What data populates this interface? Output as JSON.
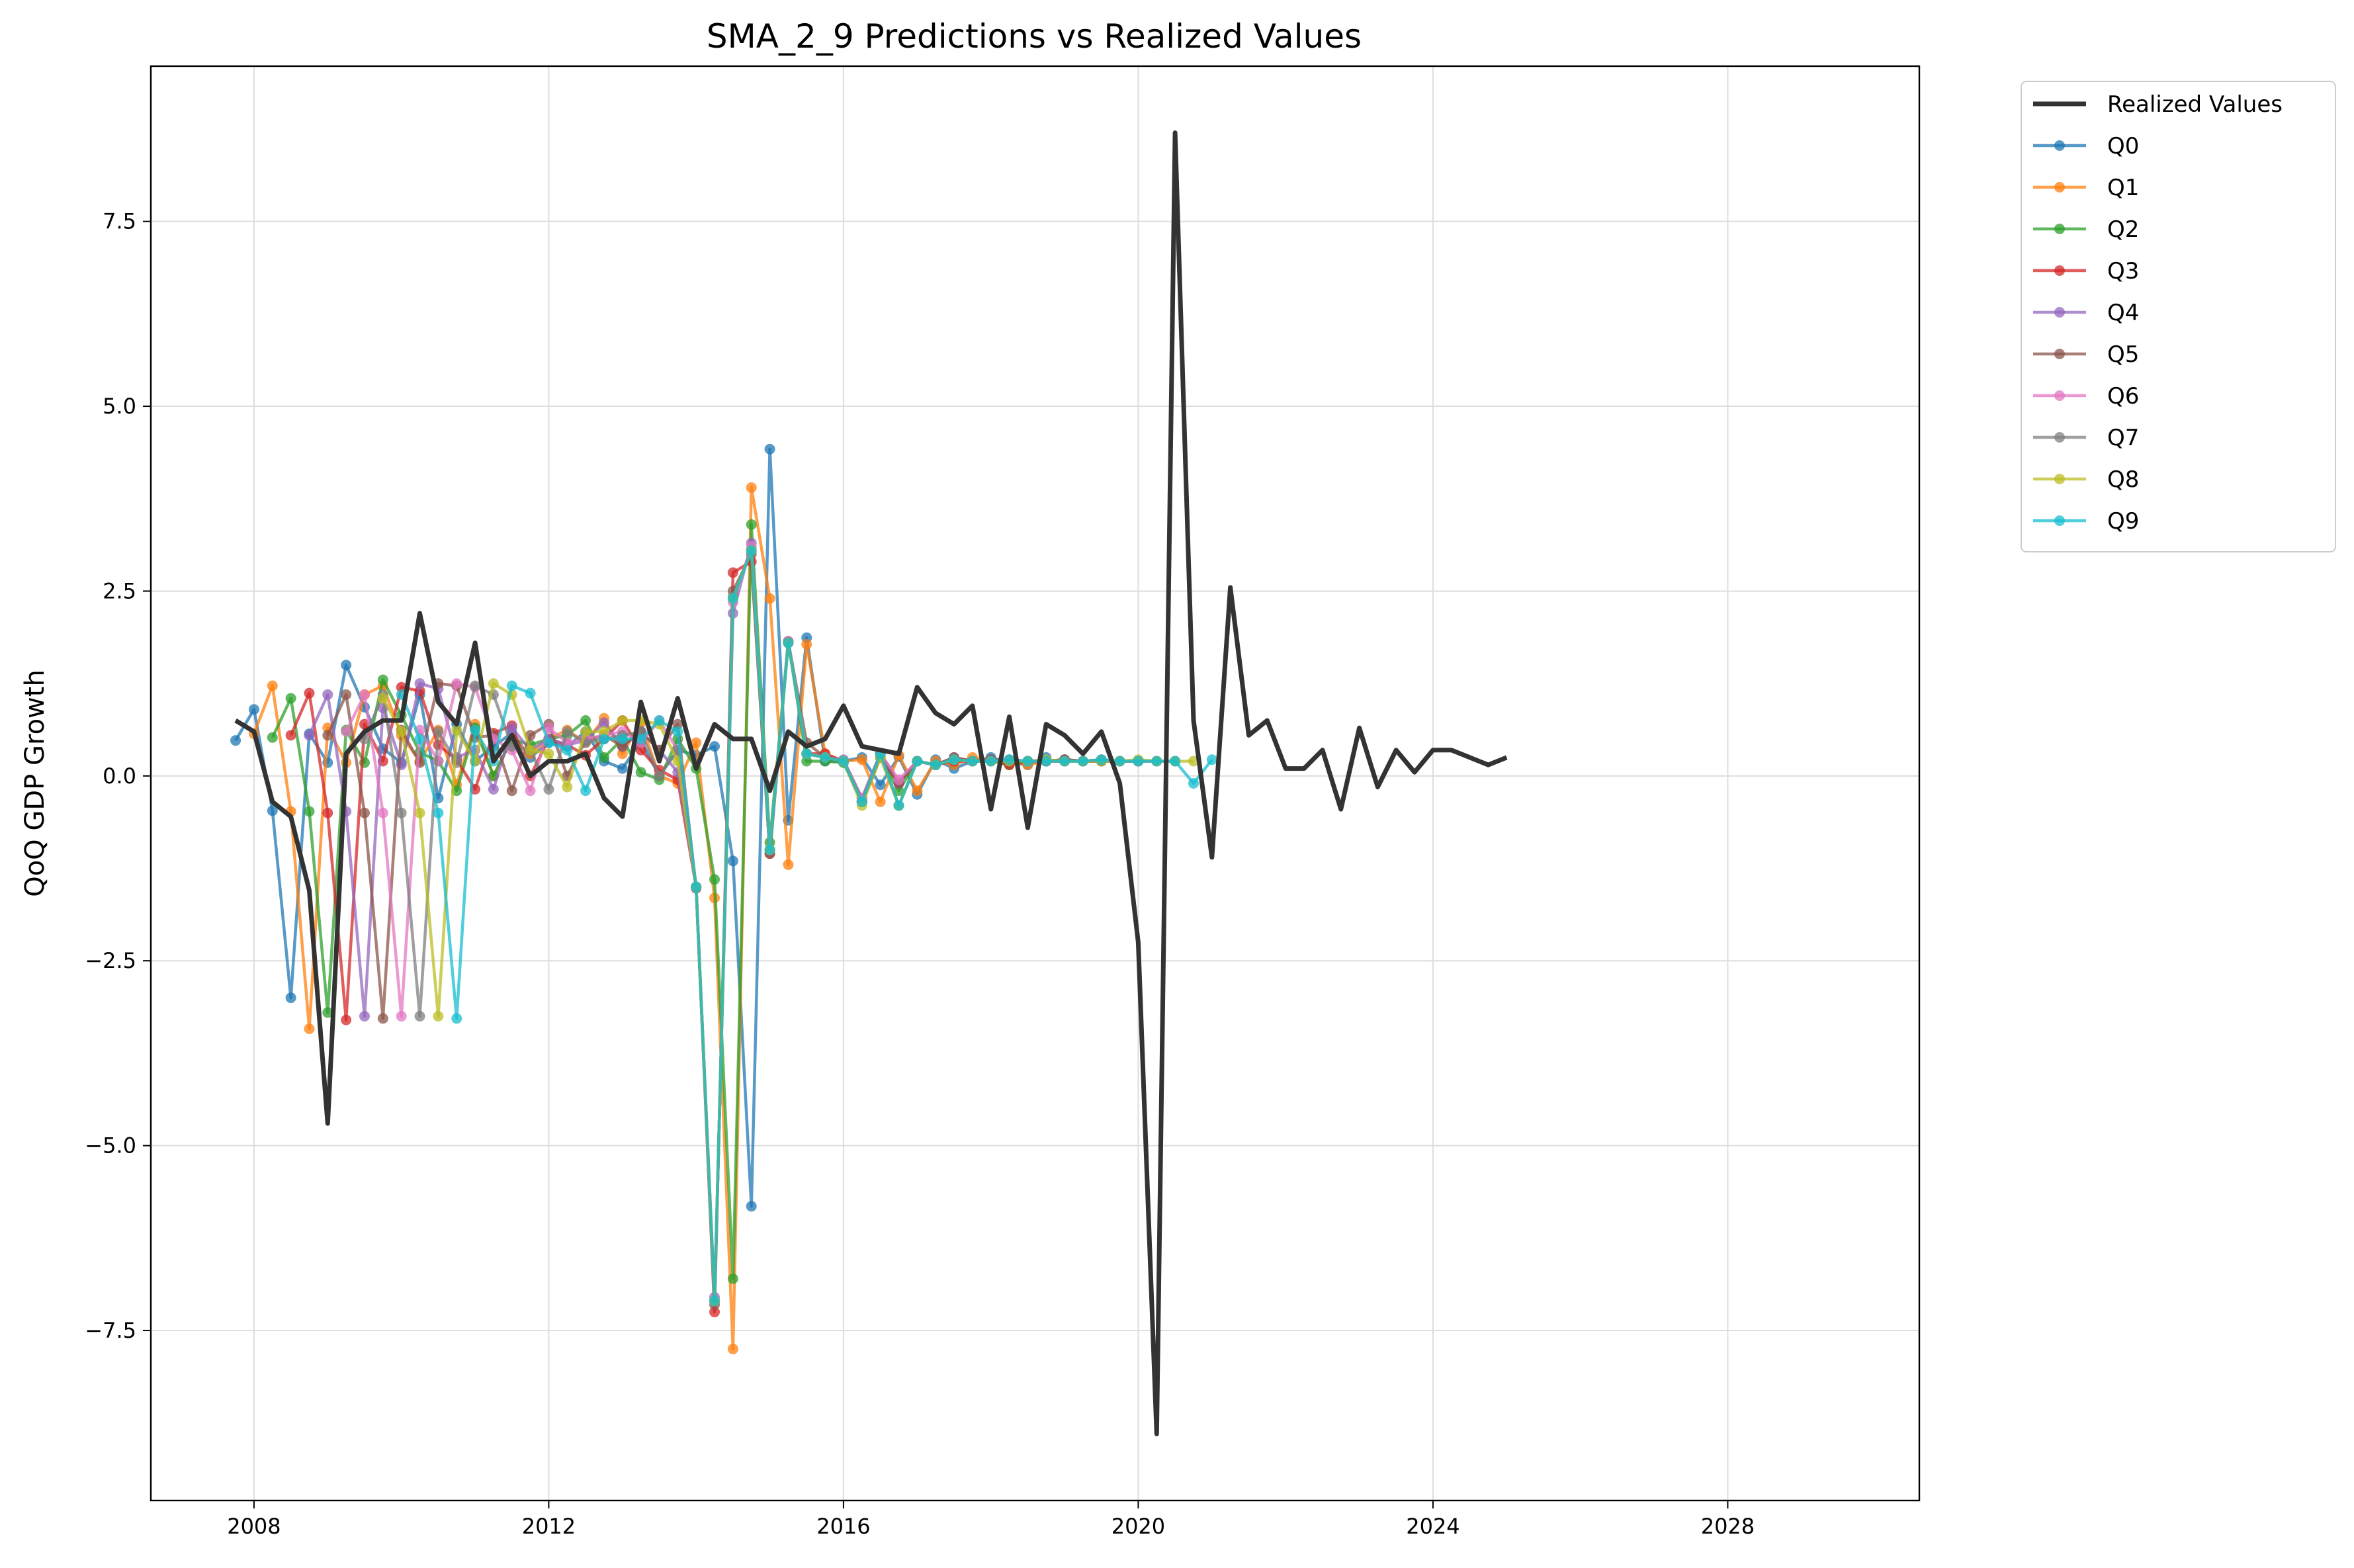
{
  "chart_data": {
    "type": "line",
    "title": "SMA_2_9 Predictions vs Realized Values",
    "xlabel": "",
    "ylabel": "QoQ GDP Growth",
    "xlim": [
      2006.6,
      2030.6
    ],
    "ylim": [
      -9.8,
      9.6
    ],
    "xticks": [
      2008,
      2012,
      2016,
      2020,
      2024,
      2028
    ],
    "yticks": [
      -7.5,
      -5.0,
      -2.5,
      0.0,
      2.5,
      5.0,
      7.5
    ],
    "ytick_labels": [
      "−7.5",
      "−5.0",
      "−2.5",
      "0.0",
      "2.5",
      "5.0",
      "7.5"
    ],
    "grid": true,
    "legend_position": "outside-top-right",
    "realized": {
      "name": "Realized Values",
      "color": "#333333",
      "x": [
        2007.75,
        2008.0,
        2008.25,
        2008.5,
        2008.75,
        2009.0,
        2009.25,
        2009.5,
        2009.75,
        2010.0,
        2010.25,
        2010.5,
        2010.75,
        2011.0,
        2011.25,
        2011.5,
        2011.75,
        2012.0,
        2012.25,
        2012.5,
        2012.75,
        2013.0,
        2013.25,
        2013.5,
        2013.75,
        2014.0,
        2014.25,
        2014.5,
        2014.75,
        2015.0,
        2015.25,
        2015.5,
        2015.75,
        2016.0,
        2016.25,
        2016.5,
        2016.75,
        2017.0,
        2017.25,
        2017.5,
        2017.75,
        2018.0,
        2018.25,
        2018.5,
        2018.75,
        2019.0,
        2019.25,
        2019.5,
        2019.75,
        2020.0,
        2020.25,
        2020.5,
        2020.75,
        2021.0,
        2021.25,
        2021.5,
        2021.75,
        2022.0,
        2022.25,
        2022.5,
        2022.75,
        2023.0,
        2023.25,
        2023.5,
        2023.75,
        2024.0,
        2024.25,
        2024.5,
        2024.75,
        2025.0
      ],
      "y": [
        0.75,
        0.6,
        -0.35,
        -0.55,
        -1.55,
        -4.7,
        0.3,
        0.6,
        0.75,
        0.75,
        2.2,
        1.0,
        0.7,
        1.8,
        0.2,
        0.55,
        0.0,
        0.2,
        0.2,
        0.3,
        -0.3,
        -0.55,
        1.0,
        0.2,
        1.05,
        0.1,
        0.7,
        0.5,
        0.5,
        -0.2,
        0.6,
        0.4,
        0.5,
        0.95,
        0.4,
        0.35,
        0.3,
        1.2,
        0.85,
        0.7,
        0.95,
        -0.45,
        0.8,
        -0.7,
        0.7,
        0.55,
        0.3,
        0.6,
        -0.1,
        -2.25,
        -8.9,
        8.7,
        0.75,
        -1.1,
        2.55,
        0.55,
        0.75,
        0.1,
        0.1,
        0.35,
        -0.45,
        0.65,
        -0.15,
        0.35,
        0.05,
        0.35,
        0.35,
        0.25,
        0.15,
        0.25
      ]
    },
    "series": [
      {
        "name": "Q0",
        "color": "#1f77b4",
        "offset": 0,
        "y": [
          0.48,
          0.9,
          -0.47,
          -3.0,
          0.57,
          0.18,
          1.5,
          0.93,
          0.37,
          0.18,
          1.1,
          -0.3,
          0.7,
          0.2,
          0.4,
          0.58,
          0.25,
          0.45,
          0.4,
          0.6,
          0.2,
          0.1,
          0.47,
          0.0,
          0.35,
          0.28,
          0.4,
          -1.15,
          -5.82,
          4.42,
          -0.6,
          1.87,
          0.2,
          0.2,
          0.25,
          -0.12,
          0.26,
          -0.25,
          0.22,
          0.1,
          0.2,
          0.25,
          0.18,
          0.15,
          0.25
        ]
      },
      {
        "name": "Q1",
        "color": "#ff7f0e",
        "offset": 1,
        "y": [
          0.57,
          1.22,
          -0.48,
          -3.42,
          0.65,
          0.18,
          1.1,
          1.22,
          0.55,
          0.2,
          0.62,
          -0.12,
          0.7,
          0.0,
          0.5,
          0.3,
          0.5,
          0.62,
          0.45,
          0.78,
          0.3,
          0.72,
          0.0,
          -0.1,
          0.45,
          -1.65,
          -7.75,
          3.9,
          2.4,
          -1.2,
          1.78,
          0.3,
          0.2,
          0.22,
          -0.35,
          0.28,
          -0.2,
          0.2,
          0.15,
          0.25,
          0.22,
          0.2,
          0.15,
          0.2,
          0.2
        ]
      },
      {
        "name": "Q2",
        "color": "#2ca02c",
        "offset": 2,
        "y": [
          0.52,
          1.05,
          -0.48,
          -3.2,
          0.62,
          0.18,
          1.3,
          0.82,
          0.32,
          0.2,
          -0.2,
          0.65,
          0.0,
          0.5,
          0.42,
          0.5,
          0.55,
          0.75,
          0.25,
          0.5,
          0.05,
          -0.05,
          0.5,
          0.1,
          -1.4,
          -6.8,
          3.4,
          -0.9,
          1.82,
          0.2,
          0.2,
          0.18,
          -0.35,
          0.25,
          -0.2,
          0.2,
          0.15,
          0.22,
          0.2,
          0.2,
          0.15,
          0.2,
          0.2,
          0.22,
          0.2
        ]
      },
      {
        "name": "Q3",
        "color": "#d62728",
        "offset": 3,
        "y": [
          0.55,
          1.12,
          -0.5,
          -3.3,
          0.7,
          0.2,
          1.2,
          1.15,
          0.42,
          0.22,
          -0.18,
          0.58,
          0.68,
          0.0,
          0.5,
          0.42,
          0.28,
          0.5,
          0.75,
          0.35,
          0.08,
          -0.05,
          -1.5,
          -7.25,
          2.75,
          2.9,
          -1.05,
          1.8,
          0.3,
          0.3,
          0.2,
          -0.35,
          0.25,
          -0.1,
          0.2,
          0.15,
          0.2,
          0.2,
          0.22,
          0.15,
          0.2,
          0.2,
          0.22,
          0.2,
          0.2
        ]
      },
      {
        "name": "Q4",
        "color": "#9467bd",
        "offset": 4,
        "y": [
          0.55,
          1.1,
          -0.48,
          -3.25,
          0.92,
          0.15,
          1.25,
          1.18,
          0.25,
          0.35,
          -0.18,
          0.65,
          0.35,
          0.5,
          0.42,
          0.48,
          0.72,
          0.4,
          0.6,
          0.35,
          0.05,
          -1.5,
          -7.05,
          2.2,
          3.15,
          -1.0,
          1.82,
          0.3,
          0.25,
          0.22,
          -0.3,
          0.3,
          -0.1,
          0.2,
          0.15,
          0.25,
          0.2,
          0.22,
          0.2,
          0.2,
          0.2,
          0.22,
          0.2,
          0.2,
          0.2
        ]
      },
      {
        "name": "Q5",
        "color": "#8c564b",
        "offset": 5,
        "y": [
          0.55,
          1.1,
          -0.5,
          -3.28,
          0.62,
          0.18,
          1.25,
          1.22,
          0.52,
          0.55,
          -0.2,
          0.55,
          0.7,
          0.0,
          0.48,
          0.55,
          0.4,
          0.6,
          0.35,
          0.7,
          -1.52,
          -7.15,
          2.5,
          3.0,
          -1.05,
          1.82,
          0.45,
          0.25,
          0.2,
          -0.3,
          0.3,
          -0.1,
          0.2,
          0.15,
          0.25,
          0.2,
          0.22,
          0.2,
          0.2,
          0.2,
          0.22,
          0.2,
          0.2,
          0.2,
          0.2
        ]
      },
      {
        "name": "Q6",
        "color": "#e377c2",
        "offset": 6,
        "y": [
          0.6,
          1.1,
          -0.5,
          -3.25,
          0.62,
          0.2,
          1.25,
          1.2,
          0.5,
          0.35,
          -0.2,
          0.65,
          0.45,
          0.5,
          0.55,
          0.6,
          0.45,
          0.75,
          0.35,
          -1.5,
          -7.1,
          2.35,
          3.1,
          -1.0,
          1.82,
          0.3,
          0.25,
          0.2,
          -0.3,
          0.3,
          -0.05,
          0.2,
          0.15,
          0.22,
          0.2,
          0.2,
          0.22,
          0.2,
          0.2,
          0.2,
          0.2,
          0.22,
          0.2,
          0.2,
          0.2
        ]
      },
      {
        "name": "Q7",
        "color": "#7f7f7f",
        "offset": 7,
        "y": [
          0.5,
          1.1,
          -0.5,
          -3.25,
          0.6,
          0.18,
          1.22,
          1.1,
          0.4,
          0.35,
          -0.18,
          0.6,
          0.45,
          0.5,
          0.55,
          0.6,
          0.0,
          0.35,
          -1.5,
          -7.1,
          2.42,
          3.05,
          -1.0,
          1.8,
          0.3,
          0.25,
          0.2,
          -0.35,
          0.3,
          -0.4,
          0.2,
          0.15,
          0.22,
          0.2,
          0.2,
          0.22,
          0.2,
          0.2,
          0.2,
          0.2,
          0.22,
          0.2,
          0.2,
          0.2,
          0.2
        ]
      },
      {
        "name": "Q8",
        "color": "#bcbd22",
        "offset": 8,
        "y": [
          1.05,
          0.6,
          -0.5,
          -3.25,
          0.62,
          0.2,
          1.25,
          1.1,
          0.35,
          0.3,
          -0.15,
          0.6,
          0.6,
          0.75,
          0.75,
          0.7,
          0.2,
          -1.5,
          -7.1,
          2.4,
          3.05,
          -1.0,
          1.8,
          0.3,
          0.25,
          0.2,
          -0.4,
          0.25,
          -0.4,
          0.2,
          0.15,
          0.22,
          0.2,
          0.2,
          0.2,
          0.2,
          0.22,
          0.2,
          0.2,
          0.2,
          0.2,
          0.22,
          0.2,
          0.2,
          0.2
        ]
      },
      {
        "name": "Q9",
        "color": "#17becf",
        "offset": 9,
        "y": [
          1.1,
          0.5,
          -0.5,
          -3.28,
          0.62,
          0.2,
          1.22,
          1.12,
          0.45,
          0.35,
          -0.2,
          0.5,
          0.5,
          0.5,
          0.75,
          0.6,
          -1.5,
          -7.1,
          2.4,
          3.05,
          -1.0,
          1.8,
          0.3,
          0.25,
          0.2,
          -0.35,
          0.3,
          -0.4,
          0.2,
          0.15,
          0.22,
          0.2,
          0.2,
          0.22,
          0.2,
          0.2,
          0.2,
          0.2,
          0.22,
          0.2,
          0.2,
          0.2,
          0.2,
          -0.1,
          0.22
        ]
      }
    ]
  }
}
